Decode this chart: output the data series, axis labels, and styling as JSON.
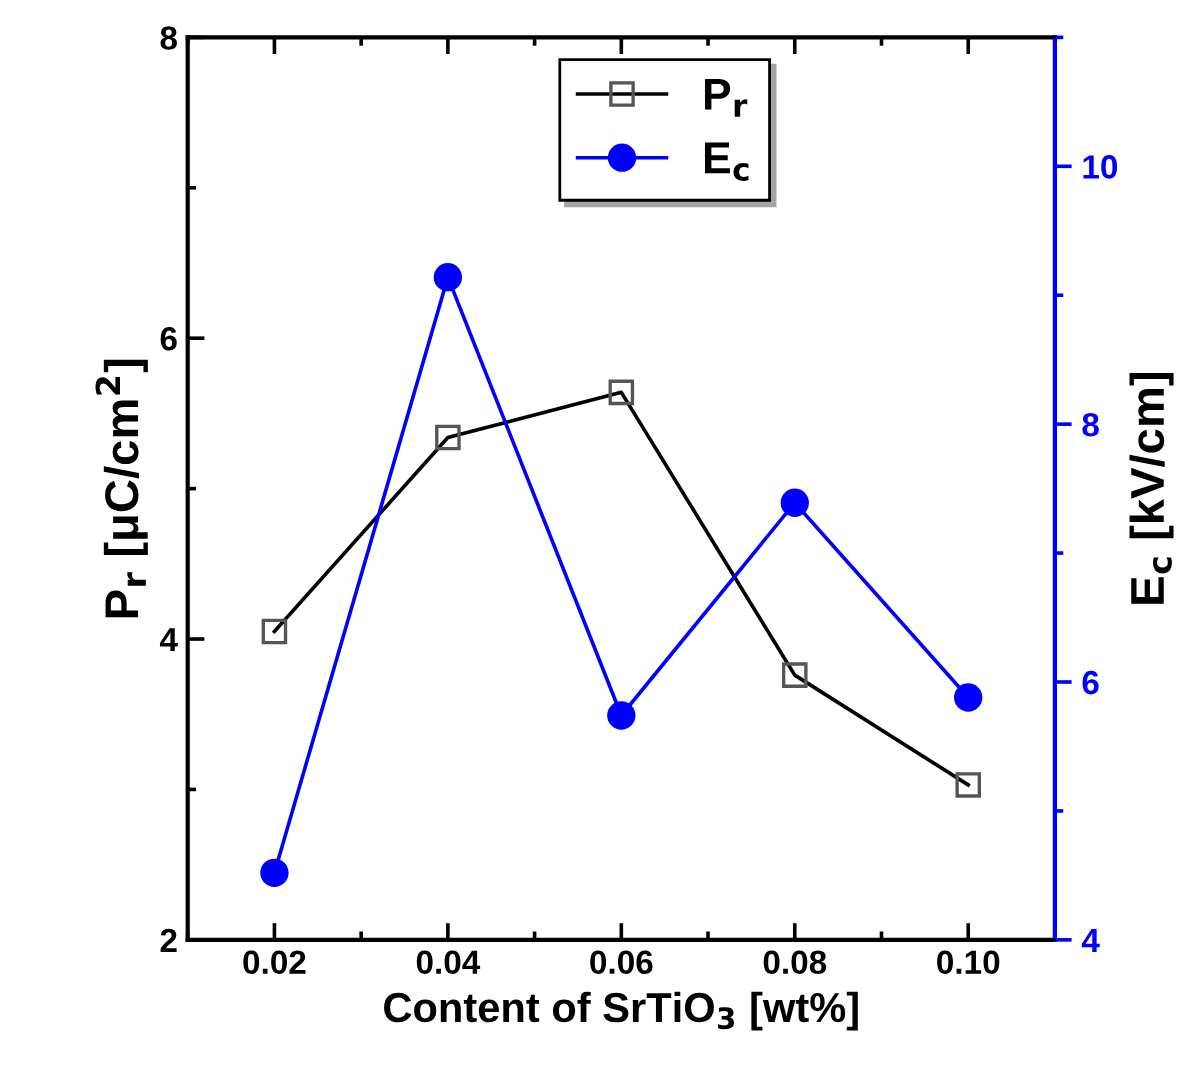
{
  "chart_data": {
    "type": "line",
    "xlabel": "Content of SrTiO$_{3}$ [wt%]",
    "ylabel": "P$_{r}$ [μC/cm$^{2}$]",
    "y2label": "E$_{c}$ [kV/cm]",
    "x": [
      0.02,
      0.04,
      0.06,
      0.08,
      0.1
    ],
    "xlim": [
      0.01,
      0.11
    ],
    "xticks": [
      {
        "value": 0.02,
        "label": "0.02"
      },
      {
        "value": 0.04,
        "label": "0.04"
      },
      {
        "value": 0.06,
        "label": "0.06"
      },
      {
        "value": 0.08,
        "label": "0.08"
      },
      {
        "value": 0.1,
        "label": "0.10"
      }
    ],
    "ylim": [
      2,
      8
    ],
    "yticks": [
      2,
      4,
      6,
      8
    ],
    "y2lim": [
      4,
      11
    ],
    "y2ticks": [
      4,
      6,
      8,
      10
    ],
    "legend": "top",
    "series": [
      {
        "name": "P$_{r}$",
        "color": "#000000",
        "marker": "square",
        "values": [
          4.05,
          5.34,
          5.64,
          3.76,
          3.03
        ]
      },
      {
        "name": "E$_{c}$",
        "color": "#0000ff",
        "marker": "circle",
        "axis": "y2",
        "values": [
          4.52,
          9.14,
          5.74,
          7.39,
          5.88
        ]
      }
    ]
  }
}
